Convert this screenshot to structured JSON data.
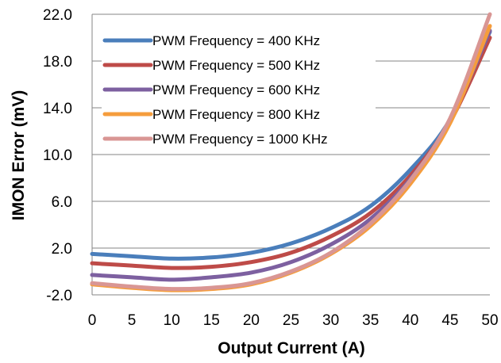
{
  "chart_data": {
    "type": "line",
    "title": "",
    "xlabel": "Output Current (A)",
    "ylabel": "IMON Error (mV)",
    "xlim": [
      0,
      50
    ],
    "ylim": [
      -2.0,
      22.0
    ],
    "x_ticks": [
      "0",
      "5",
      "10",
      "15",
      "20",
      "25",
      "30",
      "35",
      "40",
      "45",
      "50"
    ],
    "y_ticks": [
      "-2.0",
      "2.0",
      "6.0",
      "10.0",
      "14.0",
      "18.0",
      "22.0"
    ],
    "grid": "horizontal",
    "legend_position": "top-left",
    "x": [
      0,
      5,
      10,
      15,
      20,
      25,
      30,
      35,
      40,
      45,
      50
    ],
    "series": [
      {
        "name": "PWM Frequency = 400 KHz",
        "color": "#4a7ebb",
        "values": [
          1.5,
          1.3,
          1.1,
          1.2,
          1.6,
          2.4,
          3.7,
          5.6,
          8.7,
          13.0,
          20.5
        ]
      },
      {
        "name": "PWM Frequency = 500 KHz",
        "color": "#be4b48",
        "values": [
          0.7,
          0.5,
          0.3,
          0.4,
          0.8,
          1.6,
          3.0,
          5.0,
          8.2,
          12.8,
          20.0
        ]
      },
      {
        "name": "PWM Frequency = 600 KHz",
        "color": "#7d60a0",
        "values": [
          -0.3,
          -0.5,
          -0.7,
          -0.5,
          -0.1,
          0.8,
          2.3,
          4.5,
          7.9,
          12.9,
          20.6
        ]
      },
      {
        "name": "PWM Frequency = 800 KHz",
        "color": "#f59d3d",
        "values": [
          -1.1,
          -1.4,
          -1.6,
          -1.5,
          -1.1,
          -0.1,
          1.5,
          3.9,
          7.5,
          12.7,
          21.0
        ]
      },
      {
        "name": "PWM Frequency = 1000 KHz",
        "color": "#d99694",
        "values": [
          -1.0,
          -1.3,
          -1.5,
          -1.4,
          -1.0,
          0.0,
          1.6,
          4.1,
          7.8,
          13.1,
          22.0
        ]
      }
    ]
  }
}
